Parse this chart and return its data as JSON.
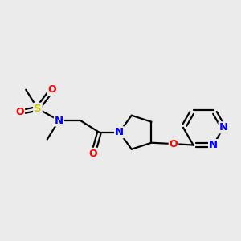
{
  "background_color": "#ebebeb",
  "bond_color": "#000000",
  "atom_colors": {
    "S": "#cccc00",
    "O": "#ff0000",
    "N": "#0000ff",
    "C": "#000000"
  },
  "figsize": [
    3.0,
    3.0
  ],
  "dpi": 100,
  "xlim": [
    0,
    10
  ],
  "ylim": [
    2,
    9
  ]
}
